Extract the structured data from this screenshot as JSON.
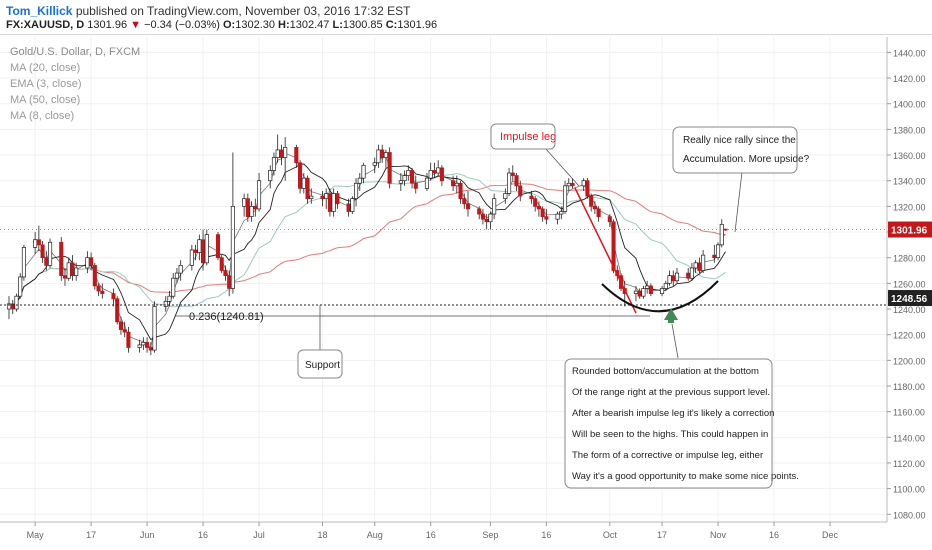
{
  "header": {
    "author": "Tom_Killick",
    "published": "published on TradingView.com, November 03, 2016 17:32 EST",
    "symbol": "FX:XAUUSD, D",
    "last": "1301.96",
    "change_arrow": "▼",
    "change": "−0.34 (−0.03%)",
    "ohlc": [
      {
        "k": "O:",
        "v": "1302.30"
      },
      {
        "k": "H:",
        "v": "1302.47"
      },
      {
        "k": "L:",
        "v": "1300.85"
      },
      {
        "k": "C:",
        "v": "1301.96"
      }
    ]
  },
  "legend": {
    "symbol": "Gold/U.S. Dollar, D, FXCM",
    "studies": [
      "MA (20, close)",
      "EMA (3, close)",
      "MA (50, close)",
      "MA (8, close)"
    ]
  },
  "colors": {
    "up": "#ffffff",
    "down": "#c0181b",
    "outline": "#1f1f1f",
    "ma50": "#e37b7b",
    "ma20": "#9ec9c4",
    "ma8": "#222222",
    "impulse": "#e0141a"
  },
  "chart_data": {
    "type": "candlestick",
    "instrument": "Gold/U.S. Dollar, D, FXCM",
    "y_ticks": [
      1440,
      1420,
      1400,
      1380,
      1360,
      1340,
      1320,
      1300,
      1280,
      1260,
      1240,
      1220,
      1200,
      1180,
      1160,
      1140,
      1120,
      1100,
      1080
    ],
    "ylim": [
      1074,
      1452
    ],
    "x_tick_labels": [
      {
        "label": "May",
        "date": "2016-05-02"
      },
      {
        "label": "17",
        "date": "2016-05-17"
      },
      {
        "label": "Jun",
        "date": "2016-06-01"
      },
      {
        "label": "16",
        "date": "2016-06-16"
      },
      {
        "label": "Jul",
        "date": "2016-07-01"
      },
      {
        "label": "18",
        "date": "2016-07-18"
      },
      {
        "label": "Aug",
        "date": "2016-08-01"
      },
      {
        "label": "16",
        "date": "2016-08-16"
      },
      {
        "label": "Sep",
        "date": "2016-09-01"
      },
      {
        "label": "16",
        "date": "2016-09-16"
      },
      {
        "label": "Oct",
        "date": "2016-10-03"
      },
      {
        "label": "17",
        "date": "2016-10-17"
      },
      {
        "label": "Nov",
        "date": "2016-11-01"
      },
      {
        "label": "16",
        "date": "2016-11-16"
      },
      {
        "label": "Dec",
        "date": "2016-12-01"
      }
    ],
    "price_label": "1301.96",
    "level_label": "1248.56",
    "support_level": 1248.56,
    "candles": [
      [
        "2016-04-25",
        1240,
        1250,
        1232,
        1244
      ],
      [
        "2016-04-26",
        1244,
        1247,
        1236,
        1240
      ],
      [
        "2016-04-27",
        1240,
        1252,
        1238,
        1250
      ],
      [
        "2016-04-28",
        1250,
        1268,
        1248,
        1265
      ],
      [
        "2016-04-29",
        1265,
        1290,
        1262,
        1288
      ],
      [
        "2016-05-02",
        1288,
        1300,
        1283,
        1294
      ],
      [
        "2016-05-03",
        1294,
        1305,
        1285,
        1290
      ],
      [
        "2016-05-04",
        1290,
        1293,
        1276,
        1280
      ],
      [
        "2016-05-05",
        1280,
        1285,
        1270,
        1274
      ],
      [
        "2016-05-06",
        1274,
        1295,
        1272,
        1292
      ],
      [
        "2016-05-09",
        1292,
        1296,
        1262,
        1266
      ],
      [
        "2016-05-10",
        1266,
        1272,
        1258,
        1264
      ],
      [
        "2016-05-11",
        1264,
        1280,
        1262,
        1276
      ],
      [
        "2016-05-12",
        1276,
        1282,
        1262,
        1266
      ],
      [
        "2016-05-13",
        1266,
        1276,
        1262,
        1272
      ],
      [
        "2016-05-16",
        1272,
        1285,
        1268,
        1280
      ],
      [
        "2016-05-17",
        1280,
        1284,
        1270,
        1274
      ],
      [
        "2016-05-18",
        1274,
        1276,
        1255,
        1258
      ],
      [
        "2016-05-19",
        1258,
        1260,
        1250,
        1254
      ],
      [
        "2016-05-20",
        1254,
        1260,
        1248,
        1252
      ],
      [
        "2016-05-23",
        1252,
        1256,
        1242,
        1248
      ],
      [
        "2016-05-24",
        1248,
        1250,
        1228,
        1230
      ],
      [
        "2016-05-25",
        1230,
        1234,
        1220,
        1224
      ],
      [
        "2016-05-26",
        1224,
        1230,
        1218,
        1222
      ],
      [
        "2016-05-27",
        1222,
        1226,
        1206,
        1210
      ],
      [
        "2016-05-30",
        1210,
        1216,
        1206,
        1212
      ],
      [
        "2016-05-31",
        1212,
        1218,
        1208,
        1214
      ],
      [
        "2016-06-01",
        1214,
        1218,
        1206,
        1210
      ],
      [
        "2016-06-02",
        1210,
        1214,
        1204,
        1208
      ],
      [
        "2016-06-03",
        1208,
        1246,
        1206,
        1242
      ],
      [
        "2016-06-06",
        1242,
        1250,
        1238,
        1246
      ],
      [
        "2016-06-07",
        1246,
        1254,
        1242,
        1250
      ],
      [
        "2016-06-08",
        1250,
        1268,
        1248,
        1264
      ],
      [
        "2016-06-09",
        1264,
        1272,
        1260,
        1268
      ],
      [
        "2016-06-10",
        1268,
        1278,
        1262,
        1274
      ],
      [
        "2016-06-13",
        1274,
        1290,
        1270,
        1286
      ],
      [
        "2016-06-14",
        1286,
        1290,
        1278,
        1284
      ],
      [
        "2016-06-15",
        1284,
        1298,
        1278,
        1294
      ],
      [
        "2016-06-16",
        1294,
        1302,
        1270,
        1276
      ],
      [
        "2016-06-17",
        1276,
        1302,
        1274,
        1298
      ],
      [
        "2016-06-20",
        1298,
        1300,
        1278,
        1280
      ],
      [
        "2016-06-21",
        1280,
        1282,
        1268,
        1270
      ],
      [
        "2016-06-22",
        1270,
        1274,
        1262,
        1266
      ],
      [
        "2016-06-23",
        1266,
        1270,
        1250,
        1256
      ],
      [
        "2016-06-24",
        1256,
        1362,
        1252,
        1320
      ],
      [
        "2016-06-27",
        1320,
        1330,
        1312,
        1326
      ],
      [
        "2016-06-28",
        1326,
        1330,
        1308,
        1312
      ],
      [
        "2016-06-29",
        1312,
        1324,
        1308,
        1320
      ],
      [
        "2016-06-30",
        1320,
        1326,
        1312,
        1318
      ],
      [
        "2016-07-01",
        1318,
        1346,
        1316,
        1340
      ],
      [
        "2016-07-04",
        1340,
        1352,
        1334,
        1348
      ],
      [
        "2016-07-05",
        1348,
        1362,
        1344,
        1358
      ],
      [
        "2016-07-06",
        1358,
        1376,
        1354,
        1364
      ],
      [
        "2016-07-07",
        1364,
        1368,
        1352,
        1358
      ],
      [
        "2016-07-08",
        1358,
        1374,
        1340,
        1366
      ],
      [
        "2016-07-11",
        1366,
        1368,
        1350,
        1354
      ],
      [
        "2016-07-12",
        1354,
        1356,
        1330,
        1334
      ],
      [
        "2016-07-13",
        1334,
        1346,
        1330,
        1342
      ],
      [
        "2016-07-14",
        1342,
        1344,
        1322,
        1326
      ],
      [
        "2016-07-15",
        1326,
        1334,
        1322,
        1328
      ],
      [
        "2016-07-18",
        1328,
        1332,
        1320,
        1326
      ],
      [
        "2016-07-19",
        1326,
        1334,
        1318,
        1330
      ],
      [
        "2016-07-20",
        1330,
        1334,
        1312,
        1316
      ],
      [
        "2016-07-21",
        1316,
        1334,
        1312,
        1330
      ],
      [
        "2016-07-22",
        1330,
        1332,
        1318,
        1322
      ],
      [
        "2016-07-25",
        1322,
        1326,
        1312,
        1316
      ],
      [
        "2016-07-26",
        1316,
        1328,
        1314,
        1326
      ],
      [
        "2016-07-27",
        1326,
        1342,
        1320,
        1338
      ],
      [
        "2016-07-28",
        1338,
        1346,
        1332,
        1342
      ],
      [
        "2016-07-29",
        1342,
        1354,
        1338,
        1352
      ],
      [
        "2016-08-01",
        1352,
        1358,
        1346,
        1354
      ],
      [
        "2016-08-02",
        1354,
        1368,
        1350,
        1364
      ],
      [
        "2016-08-03",
        1364,
        1368,
        1354,
        1358
      ],
      [
        "2016-08-04",
        1358,
        1364,
        1350,
        1362
      ],
      [
        "2016-08-05",
        1362,
        1366,
        1334,
        1338
      ],
      [
        "2016-08-08",
        1338,
        1346,
        1332,
        1340
      ],
      [
        "2016-08-09",
        1340,
        1348,
        1336,
        1344
      ],
      [
        "2016-08-10",
        1344,
        1352,
        1340,
        1348
      ],
      [
        "2016-08-11",
        1348,
        1350,
        1334,
        1338
      ],
      [
        "2016-08-12",
        1338,
        1344,
        1330,
        1334
      ],
      [
        "2016-08-15",
        1334,
        1346,
        1332,
        1342
      ],
      [
        "2016-08-16",
        1342,
        1354,
        1340,
        1348
      ],
      [
        "2016-08-17",
        1348,
        1354,
        1342,
        1346
      ],
      [
        "2016-08-18",
        1346,
        1356,
        1344,
        1350
      ],
      [
        "2016-08-19",
        1350,
        1352,
        1336,
        1340
      ],
      [
        "2016-08-22",
        1340,
        1344,
        1332,
        1336
      ],
      [
        "2016-08-23",
        1336,
        1344,
        1330,
        1338
      ],
      [
        "2016-08-24",
        1338,
        1340,
        1322,
        1326
      ],
      [
        "2016-08-25",
        1326,
        1330,
        1318,
        1322
      ],
      [
        "2016-08-26",
        1322,
        1332,
        1312,
        1318
      ],
      [
        "2016-08-29",
        1318,
        1320,
        1310,
        1314
      ],
      [
        "2016-08-30",
        1314,
        1318,
        1306,
        1310
      ],
      [
        "2016-08-31",
        1310,
        1314,
        1302,
        1308
      ],
      [
        "2016-09-01",
        1308,
        1316,
        1302,
        1314
      ],
      [
        "2016-09-02",
        1314,
        1330,
        1310,
        1326
      ],
      [
        "2016-09-05",
        1326,
        1334,
        1322,
        1330
      ],
      [
        "2016-09-06",
        1330,
        1350,
        1328,
        1346
      ],
      [
        "2016-09-07",
        1346,
        1352,
        1340,
        1344
      ],
      [
        "2016-09-08",
        1344,
        1346,
        1332,
        1336
      ],
      [
        "2016-09-09",
        1336,
        1340,
        1324,
        1328
      ],
      [
        "2016-09-12",
        1328,
        1332,
        1322,
        1326
      ],
      [
        "2016-09-13",
        1326,
        1328,
        1316,
        1320
      ],
      [
        "2016-09-14",
        1320,
        1324,
        1312,
        1318
      ],
      [
        "2016-09-15",
        1318,
        1320,
        1308,
        1312
      ],
      [
        "2016-09-16",
        1312,
        1318,
        1306,
        1310
      ],
      [
        "2016-09-19",
        1310,
        1316,
        1306,
        1314
      ],
      [
        "2016-09-20",
        1314,
        1320,
        1310,
        1316
      ],
      [
        "2016-09-21",
        1316,
        1340,
        1314,
        1336
      ],
      [
        "2016-09-22",
        1336,
        1342,
        1332,
        1338
      ],
      [
        "2016-09-23",
        1338,
        1342,
        1334,
        1336
      ],
      [
        "2016-09-26",
        1336,
        1342,
        1332,
        1340
      ],
      [
        "2016-09-27",
        1340,
        1342,
        1326,
        1328
      ],
      [
        "2016-09-28",
        1328,
        1330,
        1316,
        1320
      ],
      [
        "2016-09-29",
        1320,
        1324,
        1314,
        1318
      ],
      [
        "2016-09-30",
        1318,
        1320,
        1308,
        1312
      ],
      [
        "2016-10-03",
        1312,
        1314,
        1304,
        1308
      ],
      [
        "2016-10-04",
        1308,
        1310,
        1268,
        1270
      ],
      [
        "2016-10-05",
        1270,
        1274,
        1262,
        1266
      ],
      [
        "2016-10-06",
        1266,
        1268,
        1254,
        1256
      ],
      [
        "2016-10-07",
        1256,
        1262,
        1242,
        1252
      ],
      [
        "2016-10-10",
        1252,
        1258,
        1246,
        1254
      ],
      [
        "2016-10-11",
        1254,
        1256,
        1248,
        1250
      ],
      [
        "2016-10-12",
        1250,
        1258,
        1248,
        1256
      ],
      [
        "2016-10-13",
        1256,
        1262,
        1252,
        1258
      ],
      [
        "2016-10-14",
        1258,
        1260,
        1250,
        1252
      ],
      [
        "2016-10-17",
        1252,
        1258,
        1250,
        1256
      ],
      [
        "2016-10-18",
        1256,
        1262,
        1254,
        1260
      ],
      [
        "2016-10-19",
        1260,
        1270,
        1258,
        1266
      ],
      [
        "2016-10-20",
        1266,
        1270,
        1258,
        1262
      ],
      [
        "2016-10-21",
        1262,
        1272,
        1260,
        1268
      ],
      [
        "2016-10-24",
        1268,
        1272,
        1262,
        1264
      ],
      [
        "2016-10-25",
        1264,
        1276,
        1262,
        1272
      ],
      [
        "2016-10-26",
        1272,
        1278,
        1268,
        1276
      ],
      [
        "2016-10-27",
        1276,
        1280,
        1268,
        1270
      ],
      [
        "2016-10-28",
        1270,
        1286,
        1268,
        1282
      ],
      [
        "2016-10-31",
        1282,
        1290,
        1276,
        1280
      ],
      [
        "2016-11-01",
        1280,
        1292,
        1278,
        1290
      ],
      [
        "2016-11-02",
        1290,
        1310,
        1288,
        1306
      ],
      [
        "2016-11-03",
        1302.3,
        1302.47,
        1300.85,
        1301.96
      ]
    ]
  },
  "annotations": {
    "impulse_leg": "Impulse leg",
    "rally": [
      "Really nice rally since the",
      "Accumulation. More upside?"
    ],
    "fib": "0.236(1240.81)",
    "support": "Support",
    "rounded": [
      "Rounded bottom/accumulation at the bottom",
      "Of the range right at the previous support level.",
      "After a bearish impulse leg it's likely a correction",
      "Will be seen to the highs. This could happen in",
      "The form of a corrective or impulse leg, either",
      "Way it's a good opportunity to make some nice points."
    ]
  }
}
